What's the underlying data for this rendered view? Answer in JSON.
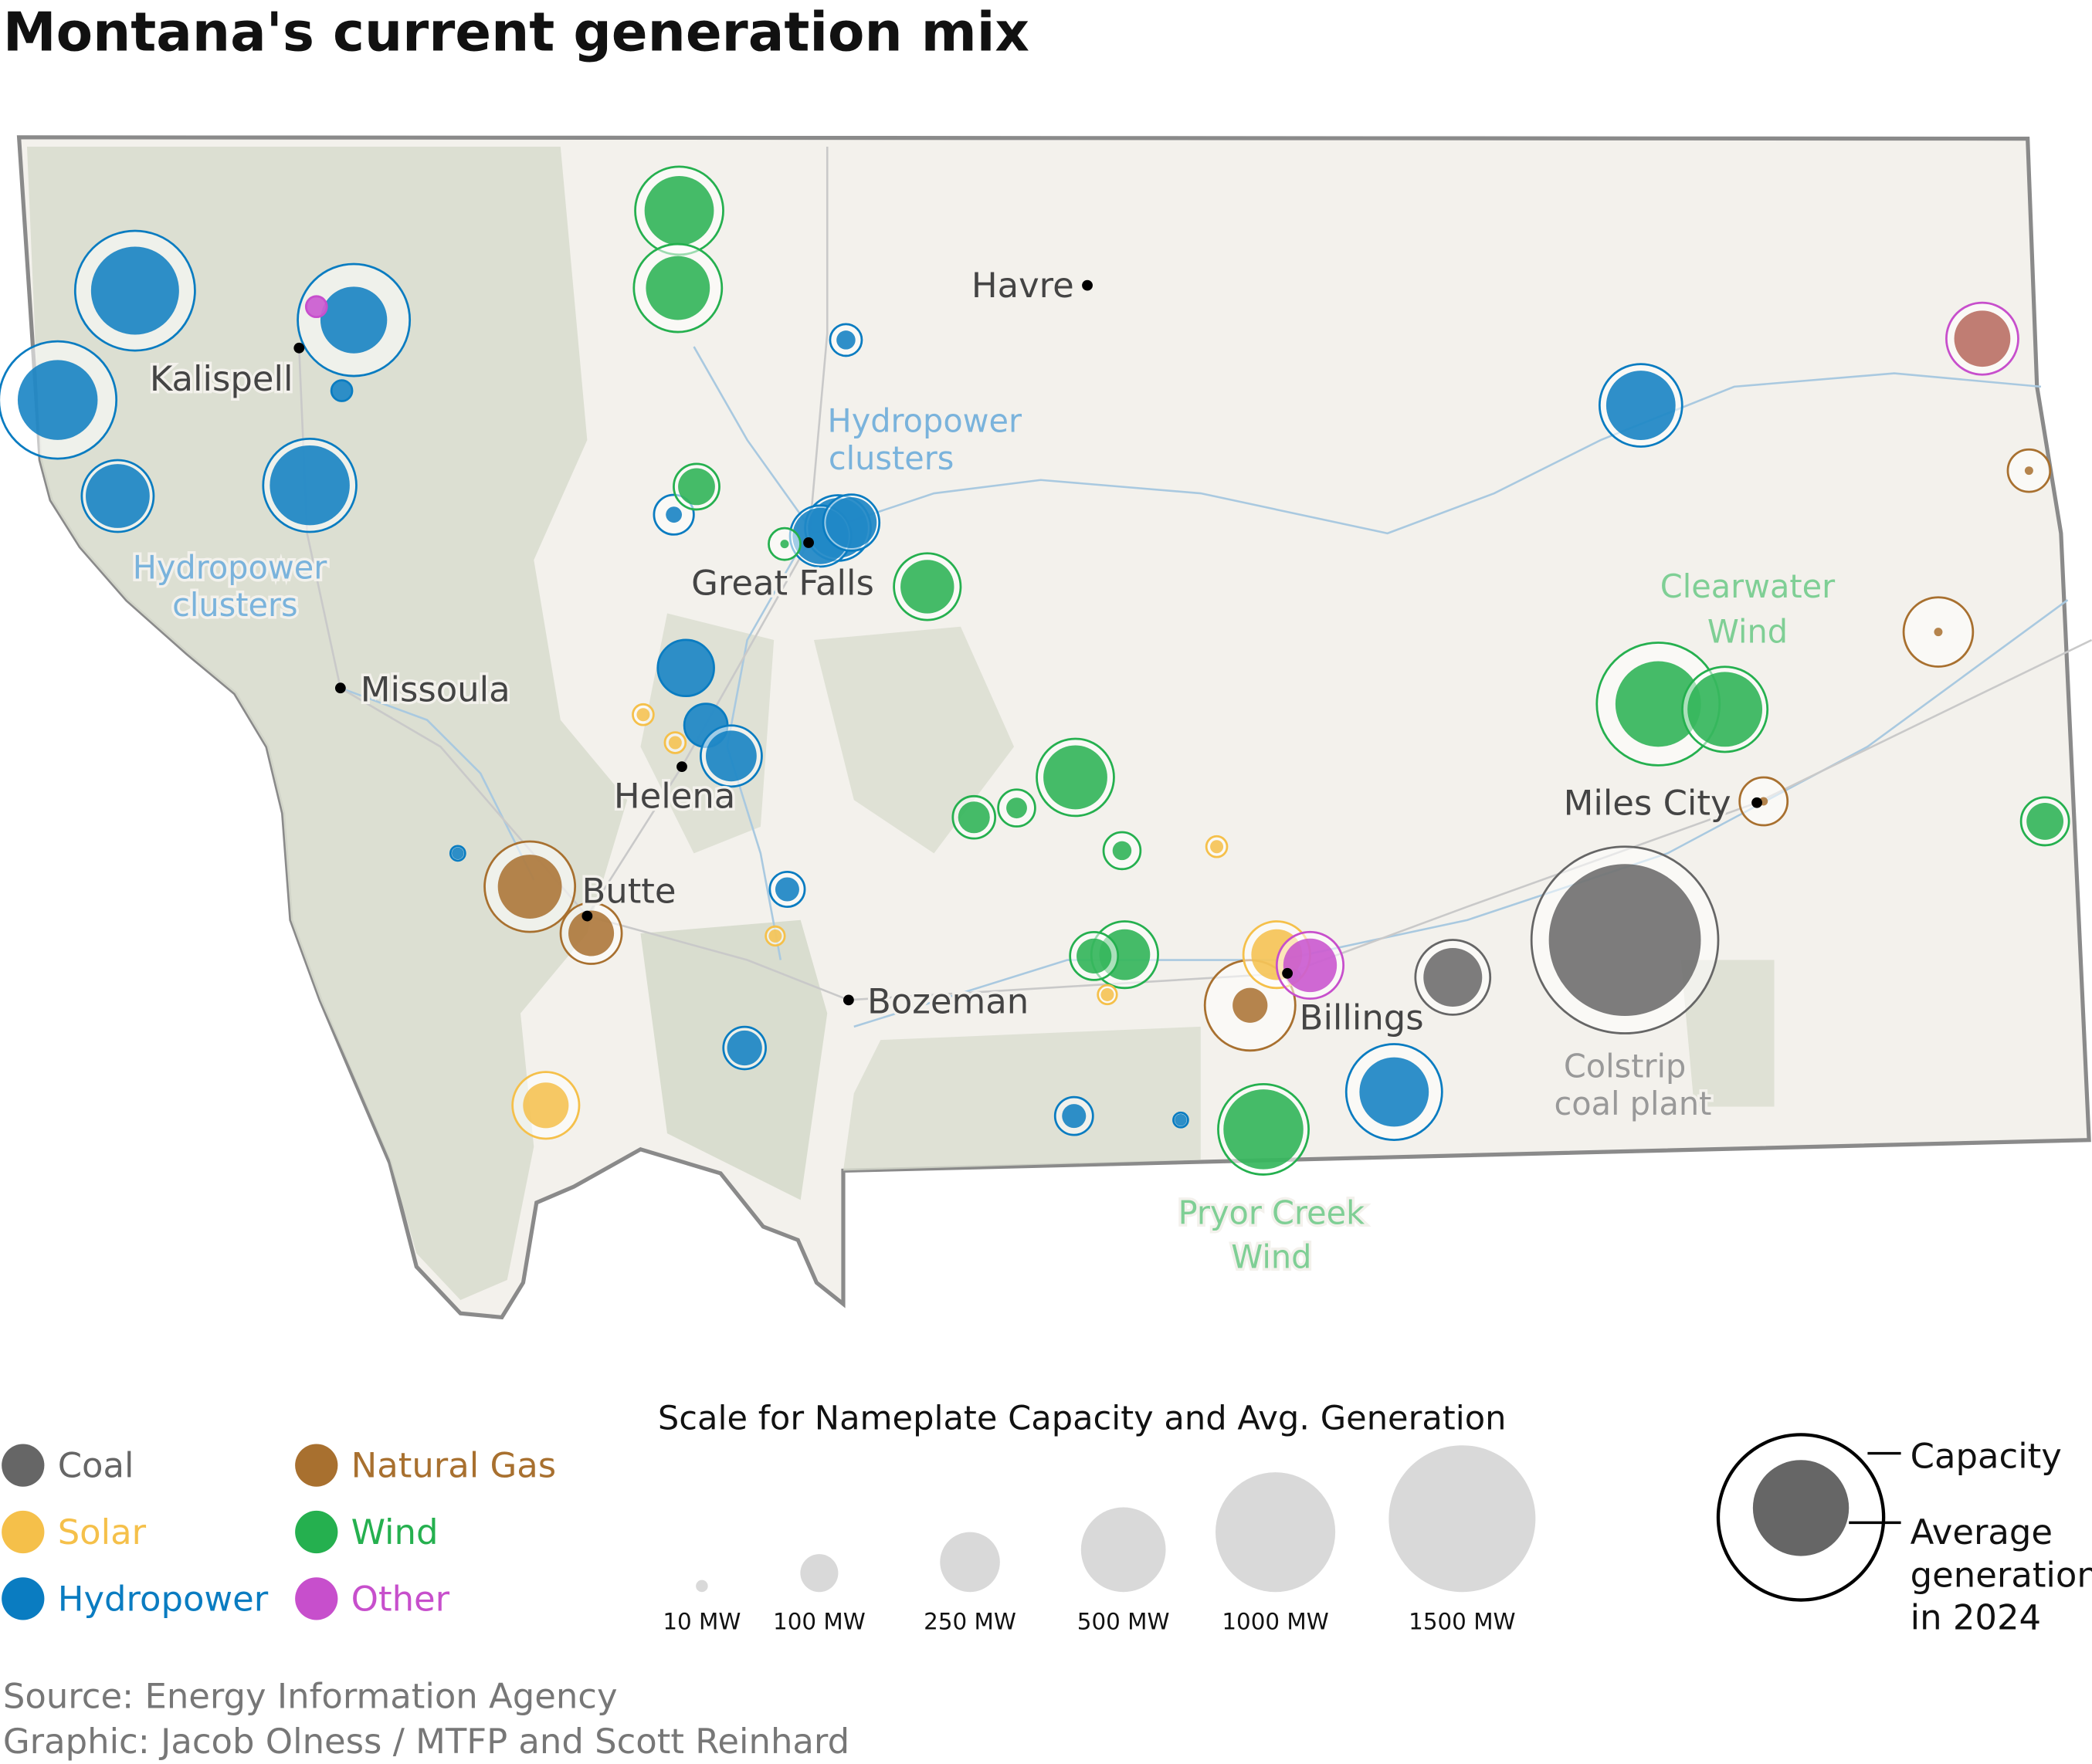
{
  "title": "Montana's current generation mix",
  "colors": {
    "coal": "#666666",
    "solar": "#f5c04a",
    "hydropower": "#0a7cc1",
    "natural_gas": "#a8702f",
    "wind": "#25b04f",
    "other": "#c74fcc",
    "state_fill": "#f3f1ec",
    "forest": "#d9ddcf",
    "border": "#8a8a8a"
  },
  "cities": [
    {
      "name": "Havre"
    },
    {
      "name": "Kalispell"
    },
    {
      "name": "Great Falls"
    },
    {
      "name": "Missoula"
    },
    {
      "name": "Helena"
    },
    {
      "name": "Butte"
    },
    {
      "name": "Bozeman"
    },
    {
      "name": "Billings"
    },
    {
      "name": "Miles City"
    }
  ],
  "annotations": [
    {
      "line1": "Hydropower",
      "line2": "clusters",
      "kind": "hydropower"
    },
    {
      "line1": "Hydropower",
      "line2": "clusters",
      "kind": "hydropower"
    },
    {
      "line1": "Clearwater",
      "line2": "Wind",
      "kind": "wind"
    },
    {
      "line1": "Colstrip",
      "line2": "coal plant",
      "kind": "coal"
    },
    {
      "line1": "Pryor Creek",
      "line2": "Wind",
      "kind": "wind"
    }
  ],
  "plants": [
    {
      "type": "coal",
      "capacity_mw": 2430,
      "generation_mw": 1610
    },
    {
      "type": "coal",
      "capacity_mw": 390,
      "generation_mw": 240
    },
    {
      "type": "coal",
      "capacity_mw": 10,
      "generation_mw": 6
    },
    {
      "type": "hydropower",
      "capacity_mw": 1000,
      "generation_mw": 540
    },
    {
      "type": "hydropower",
      "capacity_mw": 875,
      "generation_mw": 310
    },
    {
      "type": "hydropower",
      "capacity_mw": 960,
      "generation_mw": 445
    },
    {
      "type": "hydropower",
      "capacity_mw": 360,
      "generation_mw": 285
    },
    {
      "type": "hydropower",
      "capacity_mw": 605,
      "generation_mw": 445
    },
    {
      "type": "hydropower",
      "capacity_mw": 30,
      "generation_mw": 30
    },
    {
      "type": "hydropower",
      "capacity_mw": 70,
      "generation_mw": 25
    },
    {
      "type": "hydropower",
      "capacity_mw": 110,
      "generation_mw": 18
    },
    {
      "type": "hydropower",
      "capacity_mw": 300,
      "generation_mw": 250
    },
    {
      "type": "hydropower",
      "capacity_mw": 260,
      "generation_mw": 220
    },
    {
      "type": "hydropower",
      "capacity_mw": 220,
      "generation_mw": 180
    },
    {
      "type": "hydropower",
      "capacity_mw": 220,
      "generation_mw": 210
    },
    {
      "type": "hydropower",
      "capacity_mw": 130,
      "generation_mw": 125
    },
    {
      "type": "hydropower",
      "capacity_mw": 260,
      "generation_mw": 180
    },
    {
      "type": "hydropower",
      "capacity_mw": 15,
      "generation_mw": 10
    },
    {
      "type": "hydropower",
      "capacity_mw": 85,
      "generation_mw": 40
    },
    {
      "type": "hydropower",
      "capacity_mw": 125,
      "generation_mw": 85
    },
    {
      "type": "hydropower",
      "capacity_mw": 100,
      "generation_mw": 40
    },
    {
      "type": "hydropower",
      "capacity_mw": 15,
      "generation_mw": 10
    },
    {
      "type": "hydropower",
      "capacity_mw": 640,
      "generation_mw": 335
    },
    {
      "type": "hydropower",
      "capacity_mw": 475,
      "generation_mw": 335
    },
    {
      "type": "wind",
      "capacity_mw": 540,
      "generation_mw": 335
    },
    {
      "type": "wind",
      "capacity_mw": 540,
      "generation_mw": 285
    },
    {
      "type": "wind",
      "capacity_mw": 145,
      "generation_mw": 95
    },
    {
      "type": "wind",
      "capacity_mw": 70,
      "generation_mw": 5
    },
    {
      "type": "wind",
      "capacity_mw": 310,
      "generation_mw": 200
    },
    {
      "type": "wind",
      "capacity_mw": 415,
      "generation_mw": 285
    },
    {
      "type": "wind",
      "capacity_mw": 125,
      "generation_mw": 70
    },
    {
      "type": "wind",
      "capacity_mw": 95,
      "generation_mw": 30
    },
    {
      "type": "wind",
      "capacity_mw": 95,
      "generation_mw": 25
    },
    {
      "type": "wind",
      "capacity_mw": 310,
      "generation_mw": 180
    },
    {
      "type": "wind",
      "capacity_mw": 160,
      "generation_mw": 85
    },
    {
      "type": "wind",
      "capacity_mw": 570,
      "generation_mw": 445
    },
    {
      "type": "wind",
      "capacity_mw": 1050,
      "generation_mw": 510
    },
    {
      "type": "wind",
      "capacity_mw": 505,
      "generation_mw": 390
    },
    {
      "type": "wind",
      "capacity_mw": 160,
      "generation_mw": 95
    },
    {
      "type": "natural_gas",
      "capacity_mw": 570,
      "generation_mw": 285
    },
    {
      "type": "natural_gas",
      "capacity_mw": 260,
      "generation_mw": 145
    },
    {
      "type": "natural_gas",
      "capacity_mw": 570,
      "generation_mw": 85
    },
    {
      "type": "natural_gas",
      "capacity_mw": 125,
      "generation_mw": 5
    },
    {
      "type": "natural_gas",
      "capacity_mw": 335,
      "generation_mw": 5
    },
    {
      "type": "natural_gas",
      "capacity_mw": 160,
      "generation_mw": 5
    },
    {
      "type": "solar",
      "capacity_mw": 310,
      "generation_mw": 145
    },
    {
      "type": "solar",
      "capacity_mw": 30,
      "generation_mw": 12
    },
    {
      "type": "solar",
      "capacity_mw": 30,
      "generation_mw": 12
    },
    {
      "type": "solar",
      "capacity_mw": 25,
      "generation_mw": 12
    },
    {
      "type": "solar",
      "capacity_mw": 30,
      "generation_mw": 12
    },
    {
      "type": "solar",
      "capacity_mw": 25,
      "generation_mw": 12
    },
    {
      "type": "solar",
      "capacity_mw": 310,
      "generation_mw": 180
    },
    {
      "type": "other",
      "capacity_mw": 310,
      "generation_mw": 200
    },
    {
      "type": "other",
      "capacity_mw": 360,
      "generation_mw": 220
    },
    {
      "type": "other",
      "capacity_mw": 30,
      "generation_mw": 30
    }
  ],
  "legend": {
    "types": [
      {
        "key": "coal",
        "label": "Coal"
      },
      {
        "key": "solar",
        "label": "Solar"
      },
      {
        "key": "hydropower",
        "label": "Hydropower"
      },
      {
        "key": "natural_gas",
        "label": "Natural Gas"
      },
      {
        "key": "wind",
        "label": "Wind"
      },
      {
        "key": "other",
        "label": "Other"
      }
    ],
    "scale_title": "Scale for Nameplate Capacity and Avg. Generation",
    "scale": [
      {
        "mw": 10,
        "label": "10 MW"
      },
      {
        "mw": 100,
        "label": "100 MW"
      },
      {
        "mw": 250,
        "label": "250 MW"
      },
      {
        "mw": 500,
        "label": "500 MW"
      },
      {
        "mw": 1000,
        "label": "1000 MW"
      },
      {
        "mw": 1500,
        "label": "1500 MW"
      }
    ],
    "key_capacity": "Capacity",
    "key_generation": [
      "Average",
      "generation",
      "in 2024"
    ]
  },
  "credits": {
    "source": "Source: Energy Information Agency",
    "graphic": "Graphic: Jacob Olness / MTFP and Scott Reinhard"
  }
}
